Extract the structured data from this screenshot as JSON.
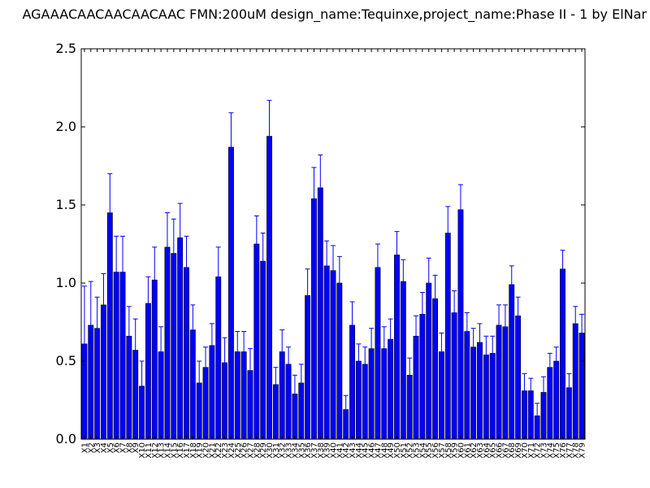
{
  "chart_data": {
    "type": "bar",
    "title": "AGAAACAACAACAACAAC  FMN:200uM  design_name:Tequinxe,project_name:Phase II - 1 by ElNar",
    "xlabel": "",
    "ylabel": "",
    "ylim": [
      0,
      2.5
    ],
    "yticks": [
      "0.0",
      "0.5",
      "1.0",
      "1.5",
      "2.0",
      "2.5"
    ],
    "grid": false,
    "colors": {
      "bar": "#0000ff",
      "error": "#0000ff",
      "axis": "#000000"
    },
    "categories": [
      "X1",
      "X2",
      "X3",
      "X4",
      "X5",
      "X6",
      "X7",
      "X8",
      "X9",
      "X10",
      "X11",
      "X12",
      "X13",
      "X14",
      "X15",
      "X16",
      "X17",
      "X18",
      "X19",
      "X20",
      "X21",
      "X22",
      "X23",
      "X24",
      "X25",
      "X26",
      "X27",
      "X28",
      "X29",
      "X30",
      "X31",
      "X32",
      "X33",
      "X34",
      "X35",
      "X36",
      "X37",
      "X38",
      "X39",
      "X40",
      "X41",
      "X42",
      "X43",
      "X44",
      "X45",
      "X46",
      "X47",
      "X48",
      "X49",
      "X50",
      "X51",
      "X52",
      "X53",
      "X54",
      "X55",
      "X56",
      "X57",
      "X58",
      "X59",
      "X60",
      "X61",
      "X62",
      "X63",
      "X64",
      "X65",
      "X66",
      "X67",
      "X68",
      "X69",
      "X70",
      "X71",
      "X72",
      "X73",
      "X74",
      "X75",
      "X76",
      "X77",
      "X78",
      "X79"
    ],
    "values": [
      0.61,
      0.73,
      0.71,
      0.86,
      1.45,
      1.07,
      1.07,
      0.66,
      0.57,
      0.34,
      0.87,
      1.02,
      0.56,
      1.23,
      1.19,
      1.29,
      1.1,
      0.7,
      0.36,
      0.46,
      0.6,
      1.04,
      0.49,
      1.87,
      0.56,
      0.56,
      0.44,
      1.25,
      1.14,
      1.94,
      0.35,
      0.56,
      0.48,
      0.29,
      0.36,
      0.92,
      1.54,
      1.61,
      1.11,
      1.08,
      1.0,
      0.19,
      0.73,
      0.5,
      0.48,
      0.58,
      1.1,
      0.58,
      0.64,
      1.18,
      1.01,
      0.41,
      0.66,
      0.8,
      1.0,
      0.9,
      0.56,
      1.32,
      0.81,
      1.47,
      0.69,
      0.59,
      0.62,
      0.54,
      0.55,
      0.73,
      0.72,
      0.99,
      0.79,
      0.31,
      0.31,
      0.15,
      0.3,
      0.46,
      0.5,
      1.09,
      0.33,
      0.74,
      0.68
    ],
    "errors": [
      0.37,
      0.28,
      0.2,
      0.2,
      0.25,
      0.23,
      0.23,
      0.19,
      0.2,
      0.16,
      0.17,
      0.21,
      0.16,
      0.22,
      0.22,
      0.22,
      0.2,
      0.16,
      0.14,
      0.13,
      0.14,
      0.19,
      0.16,
      0.22,
      0.13,
      0.13,
      0.14,
      0.18,
      0.18,
      0.23,
      0.11,
      0.14,
      0.11,
      0.12,
      0.12,
      0.17,
      0.2,
      0.21,
      0.16,
      0.16,
      0.17,
      0.09,
      0.15,
      0.11,
      0.11,
      0.13,
      0.15,
      0.14,
      0.13,
      0.15,
      0.14,
      0.11,
      0.13,
      0.14,
      0.16,
      0.15,
      0.12,
      0.17,
      0.14,
      0.16,
      0.12,
      0.12,
      0.12,
      0.12,
      0.11,
      0.13,
      0.14,
      0.12,
      0.12,
      0.11,
      0.08,
      0.08,
      0.1,
      0.09,
      0.09,
      0.12,
      0.09,
      0.11,
      0.12
    ]
  }
}
